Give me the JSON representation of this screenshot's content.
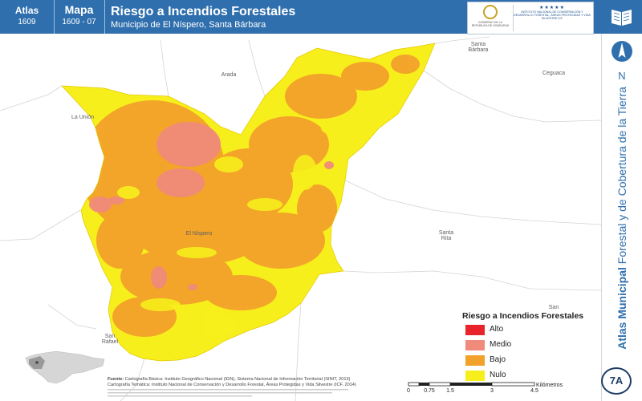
{
  "header": {
    "atlas_label": "Atlas",
    "atlas_code": "1609",
    "mapa_label": "Mapa",
    "mapa_code": "1609 - 07",
    "title": "Riesgo a Incendios Forestales",
    "subtitle": "Municipio de El Níspero, Santa Bárbara",
    "logo_left_text": "GOBIERNO DE LA REPÚBLICA DE HONDURAS",
    "logo_right_text": "INSTITUTO NACIONAL DE CONSERVACIÓN Y DESARROLLO FORESTAL, ÁREAS PROTEGIDAS Y VIDA SILVESTRE ICF"
  },
  "icons": {
    "book": "book-icon",
    "north_arrow": "north-arrow-icon"
  },
  "sidebar": {
    "north_letter": "N",
    "vertical_title_bold": "Atlas Municipal",
    "vertical_title_rest": " Forestal y de Cobertura de la Tierra",
    "badge": "7A"
  },
  "places": {
    "santa_barbara_1": "Santa",
    "santa_barbara_2": "Bárbara",
    "arada": "Arada",
    "ceguaca": "Ceguaca",
    "la_union": "La Unión",
    "el_nispero": "El Níspero",
    "santa_rita_1": "Santa",
    "santa_rita_2": "Rita",
    "san_rafael_1": "San",
    "san_rafael_2": "Rafael",
    "san_right": "San"
  },
  "legend": {
    "title": "Riesgo a Incendios Forestales",
    "items": [
      {
        "label": "Alto",
        "color": "#e8242a"
      },
      {
        "label": "Medio",
        "color": "#f08a7a"
      },
      {
        "label": "Bajo",
        "color": "#f2a12b"
      },
      {
        "label": "Nulo",
        "color": "#f7ef1c"
      }
    ]
  },
  "sources": {
    "label": "Fuente:",
    "line1": "Cartografía Básica: Instituto Geográfico Nacional (IGN), Sistema Nacional de Información Territorial (SINIT, 2013)",
    "line2": "Cartografía Temática: Instituto Nacional de Conservación y Desarrollo Forestal, Áreas Protegidas y Vida Silvestre (ICF, 2014)"
  },
  "scale": {
    "ticks": [
      "0",
      "0.75",
      "1.5",
      "3",
      "4.5"
    ],
    "unit": "Kilómetros"
  },
  "colors": {
    "header_bg": "#2f6fad",
    "nulo": "#f7ef1c",
    "bajo": "#f2a12b",
    "medio": "#f08a7a",
    "alto": "#e8242a"
  }
}
